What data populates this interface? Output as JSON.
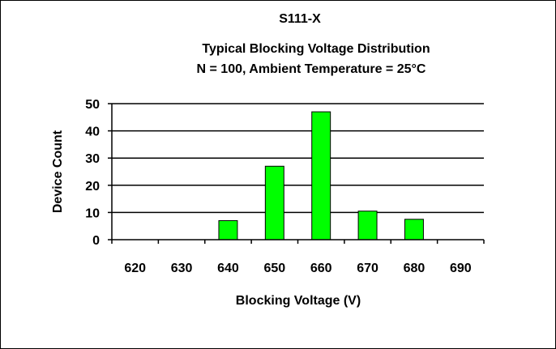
{
  "chart_data": {
    "type": "bar",
    "title": "S111-X",
    "subtitle": "Typical Blocking Voltage Distribution",
    "subtitle2": "N = 100, Ambient Temperature = 25°C",
    "xlabel": "Blocking Voltage (V)",
    "ylabel": "Device Count",
    "categories": [
      "620",
      "630",
      "640",
      "650",
      "660",
      "670",
      "680",
      "690"
    ],
    "values": [
      0,
      0,
      7,
      27,
      47,
      10.5,
      7.5,
      0
    ],
    "ylim": [
      0,
      50
    ],
    "yticks": [
      "0",
      "10",
      "20",
      "30",
      "40",
      "50"
    ],
    "grid": true,
    "bar_color": "#00ff00"
  }
}
